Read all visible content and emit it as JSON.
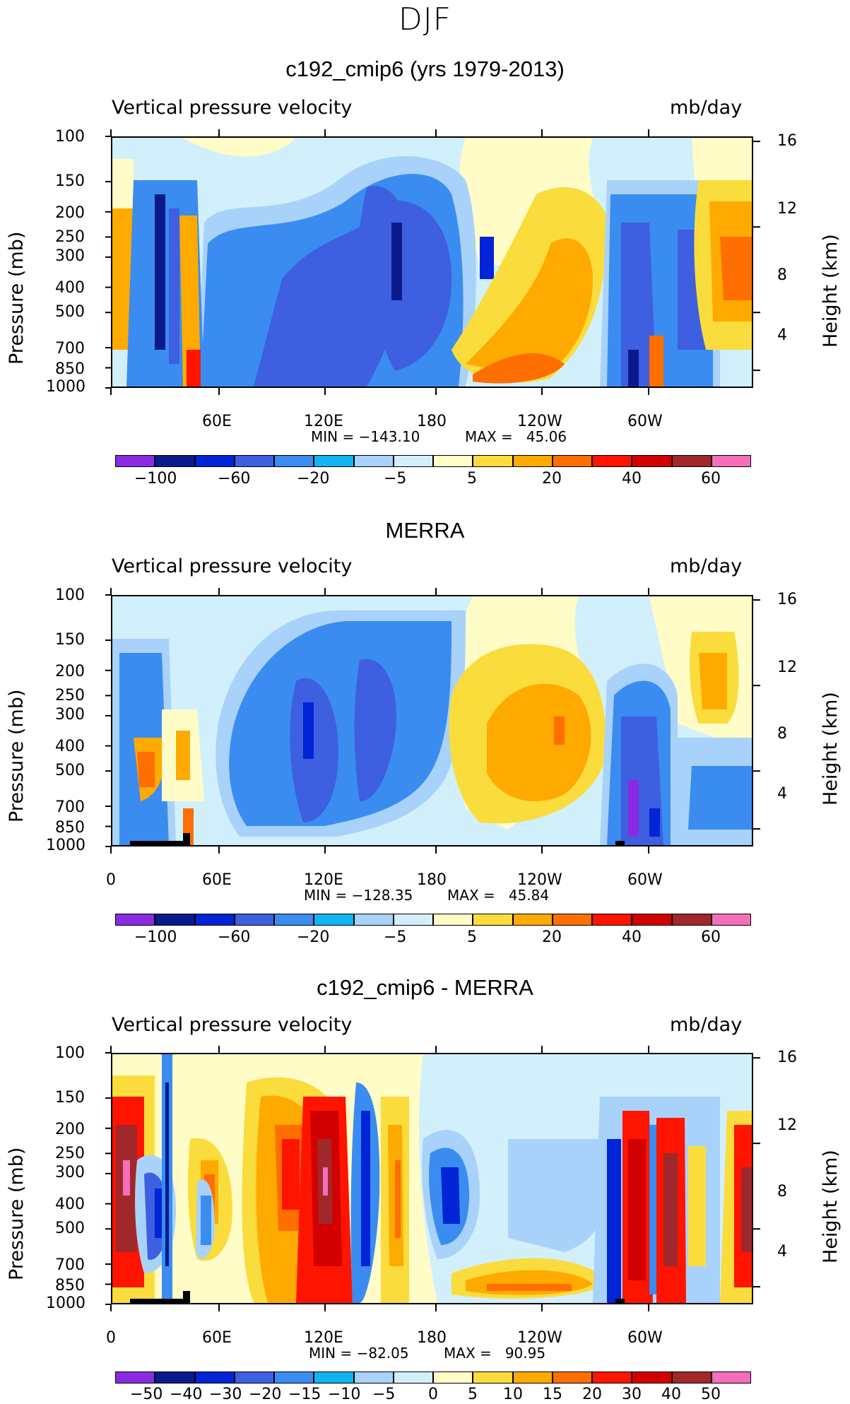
{
  "title": "DJF",
  "chart_data": [
    {
      "type": "heatmap",
      "title": "c192_cmip6 (yrs 1979-2013)",
      "subtitle_left": "Vertical pressure velocity",
      "subtitle_right": "mb/day",
      "ylabel": "Pressure (mb)",
      "ylabel_right": "Height (km)",
      "x_ticklabels": [
        "",
        "60E",
        "120E",
        "180",
        "120W",
        "60W"
      ],
      "y_ticklabels": [
        "100",
        "150",
        "200",
        "250",
        "300",
        "400",
        "500",
        "700",
        "850",
        "1000"
      ],
      "y_right_ticklabels": [
        "16",
        "12",
        "8",
        "4"
      ],
      "ylim": [
        1000,
        100
      ],
      "min_label": "MIN = −143.10",
      "max_label": "MAX =   45.06",
      "colorbar_labels": [
        "−100",
        "−60",
        "−20",
        "−5",
        "5",
        "20",
        "40",
        "60"
      ]
    },
    {
      "type": "heatmap",
      "title": "MERRA",
      "subtitle_left": "Vertical pressure velocity",
      "subtitle_right": "mb/day",
      "ylabel": "Pressure (mb)",
      "ylabel_right": "Height (km)",
      "x_ticklabels": [
        "0",
        "60E",
        "120E",
        "180",
        "120W",
        "60W"
      ],
      "y_ticklabels": [
        "100",
        "150",
        "200",
        "250",
        "300",
        "400",
        "500",
        "700",
        "850",
        "1000"
      ],
      "y_right_ticklabels": [
        "16",
        "12",
        "8",
        "4"
      ],
      "ylim": [
        1000,
        100
      ],
      "min_label": "MIN = −128.35",
      "max_label": "MAX =   45.84",
      "colorbar_labels": [
        "−100",
        "−60",
        "−20",
        "−5",
        "5",
        "20",
        "40",
        "60"
      ]
    },
    {
      "type": "heatmap",
      "title": "c192_cmip6 - MERRA",
      "subtitle_left": "Vertical pressure velocity",
      "subtitle_right": "mb/day",
      "ylabel": "Pressure (mb)",
      "ylabel_right": "Height (km)",
      "x_ticklabels": [
        "0",
        "60E",
        "120E",
        "180",
        "120W",
        "60W"
      ],
      "y_ticklabels": [
        "100",
        "150",
        "200",
        "250",
        "300",
        "400",
        "500",
        "700",
        "850",
        "1000"
      ],
      "y_right_ticklabels": [
        "16",
        "12",
        "8",
        "4"
      ],
      "ylim": [
        1000,
        100
      ],
      "min_label": "MIN = −82.05",
      "max_label": "MAX =   90.95",
      "colorbar_labels": [
        "−50",
        "−40",
        "−30",
        "−20",
        "−15",
        "−10",
        "−5",
        "0",
        "5",
        "10",
        "15",
        "20",
        "30",
        "40",
        "50"
      ]
    }
  ],
  "colorbar_colors": [
    "#8a2be2",
    "#0a1a8c",
    "#0024d6",
    "#3d5fe0",
    "#3b8cf0",
    "#12b4f2",
    "#a8d2fa",
    "#d2f0fc",
    "#fffcc8",
    "#fadc3c",
    "#ffaa00",
    "#ff6e00",
    "#ff1400",
    "#d20000",
    "#a0282a",
    "#f56eb9"
  ]
}
